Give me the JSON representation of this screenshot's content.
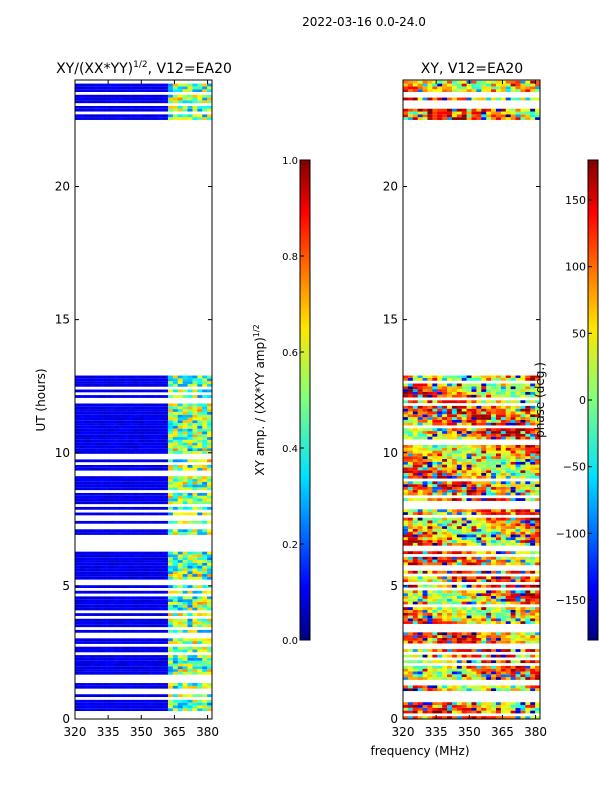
{
  "figure_title": "2022-03-16 0.0-24.0",
  "shared_xlabel": "frequency (MHz)",
  "chart_data": [
    {
      "type": "heatmap",
      "title": "XY/(XX*YY)",
      "title_exponent": "1/2",
      "title_suffix": ", V12=EA20",
      "xlabel": "",
      "ylabel": "UT (hours)",
      "xlim": [
        320,
        382
      ],
      "ylim": [
        0,
        24
      ],
      "xticks": [
        320,
        335,
        350,
        365,
        380
      ],
      "yticks": [
        0,
        5,
        10,
        15,
        20
      ],
      "data_bands_hours": [
        [
          0.3,
          12.9
        ],
        [
          22.5,
          24.0
        ]
      ],
      "colorbar": {
        "label": "XY amp. / (XX*YY amp)",
        "label_exponent": "1/2",
        "range": [
          0.0,
          1.0
        ],
        "ticks": [
          "0.0",
          "0.2",
          "0.4",
          "0.6",
          "0.8",
          "1.0"
        ],
        "colormap": "jet"
      }
    },
    {
      "type": "heatmap",
      "title": "XY, V12=EA20",
      "xlabel": "",
      "ylabel": "",
      "xlim": [
        320,
        382
      ],
      "ylim": [
        0,
        24
      ],
      "xticks": [
        320,
        335,
        350,
        365,
        380
      ],
      "yticks": [
        0,
        5,
        10,
        15,
        20
      ],
      "data_bands_hours": [
        [
          0.0,
          12.9
        ],
        [
          22.5,
          24.0
        ]
      ],
      "colorbar": {
        "label": "phase (deg.)",
        "range": [
          -180,
          180
        ],
        "ticks": [
          "−150",
          "−100",
          "−50",
          "0",
          "50",
          "100",
          "150"
        ],
        "colormap": "jet"
      }
    }
  ]
}
